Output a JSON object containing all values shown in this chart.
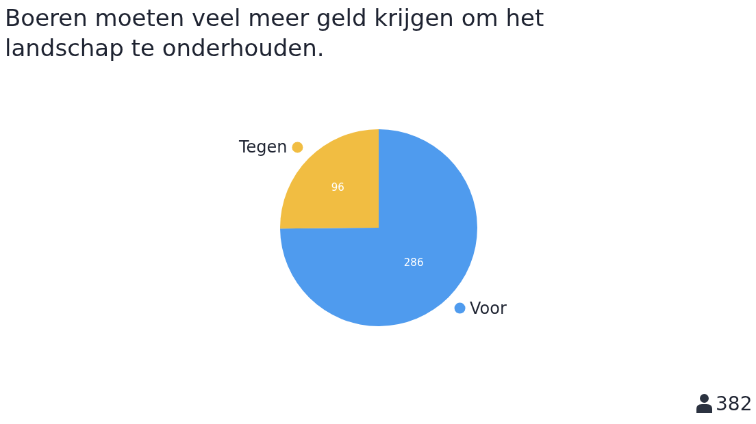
{
  "chart_data": {
    "type": "pie",
    "title": "Boeren moeten veel meer geld krijgen om het landschap te onderhouden.",
    "categories": [
      "Voor",
      "Tegen"
    ],
    "values": [
      286,
      96
    ],
    "colors": [
      "#4f9bee",
      "#f1bd42"
    ],
    "data_labels": true,
    "annotations": [
      "382"
    ]
  }
}
